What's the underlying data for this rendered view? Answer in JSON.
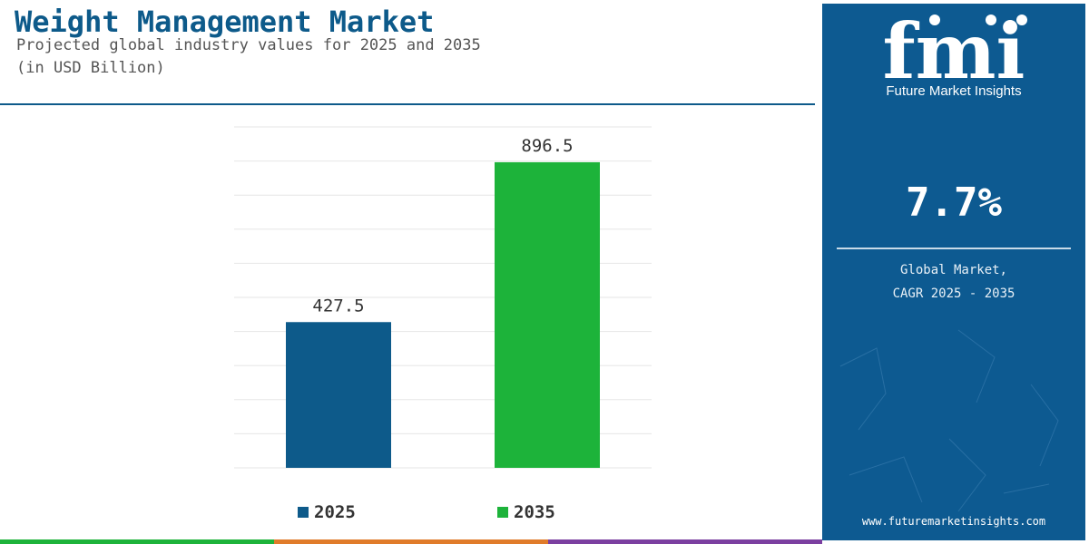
{
  "header": {
    "title": "Weight Management Market",
    "subtitle_line1": "Projected global industry values for 2025 and 2035",
    "subtitle_line2": "(in USD Billion)"
  },
  "chart_data": {
    "type": "bar",
    "categories": [
      "2025",
      "2035"
    ],
    "values": [
      427.5,
      896.5
    ],
    "value_labels": [
      "427.5",
      "896.5"
    ],
    "ylim": [
      0,
      1000
    ],
    "grid": true,
    "legend_position": "bottom",
    "series_colors": [
      "#0d5a8a",
      "#1db33a"
    ]
  },
  "legend": {
    "items": [
      {
        "label": "2025",
        "color": "#0d5a8a"
      },
      {
        "label": "2035",
        "color": "#1db33a"
      }
    ]
  },
  "panel": {
    "logo_text": "fmi",
    "logo_tagline": "Future Market Insights",
    "cagr_value": "7.7%",
    "cagr_label_line1": "Global Market,",
    "cagr_label_line2": "CAGR 2025 - 2035",
    "website": "www.futuremarketinsights.com"
  },
  "colors": {
    "brand_blue": "#0d5a8a",
    "panel_blue": "#0d5a91",
    "accent_green": "#1db33a",
    "footer_orange": "#e07b2a",
    "footer_purple": "#7b3fa0"
  }
}
